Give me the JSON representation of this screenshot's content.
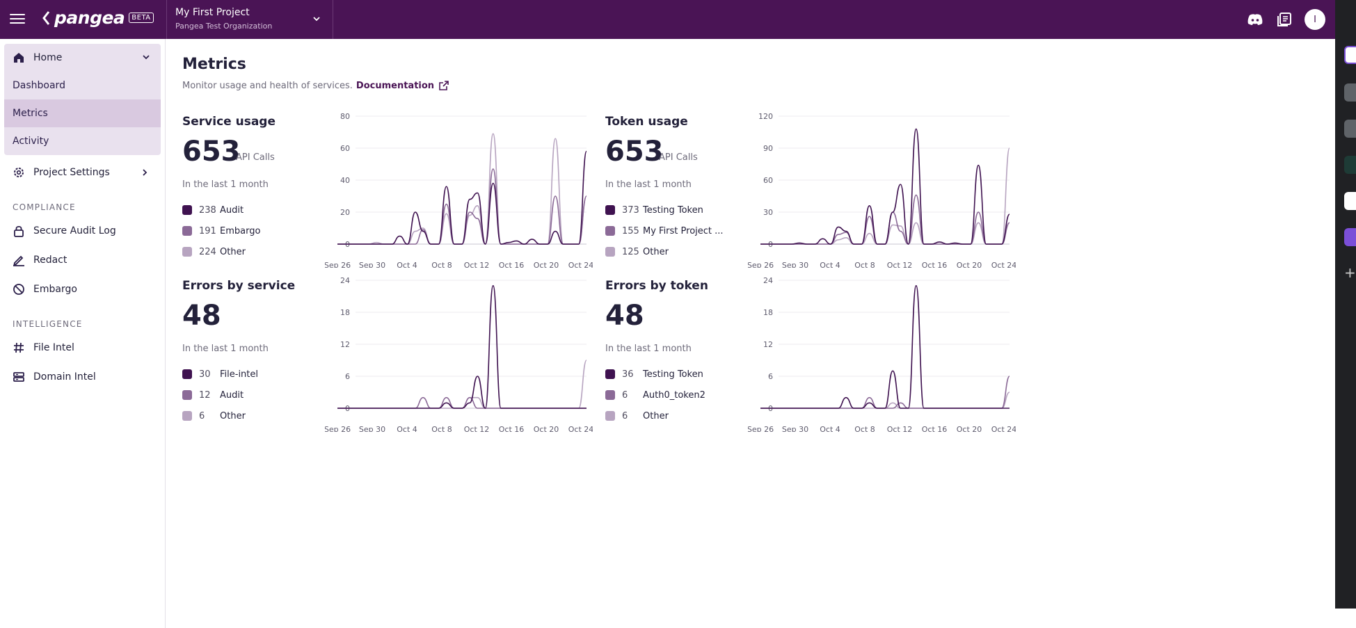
{
  "header": {
    "logo_text": "pangea",
    "beta_label": "BETA",
    "project_name": "My First Project",
    "org_name": "Pangea Test Organization",
    "avatar_initial": "I"
  },
  "sidebar": {
    "home_label": "Home",
    "home_items": [
      "Dashboard",
      "Metrics",
      "Activity"
    ],
    "active_item": "Metrics",
    "project_settings_label": "Project Settings",
    "compliance_label": "COMPLIANCE",
    "compliance_items": [
      {
        "label": "Secure Audit Log",
        "icon": "lock-icon"
      },
      {
        "label": "Redact",
        "icon": "pen-icon"
      },
      {
        "label": "Embargo",
        "icon": "prohibit-icon"
      }
    ],
    "intelligence_label": "INTELLIGENCE",
    "intelligence_items": [
      {
        "label": "File Intel",
        "icon": "hash-icon"
      },
      {
        "label": "Domain Intel",
        "icon": "server-icon"
      }
    ]
  },
  "main": {
    "title": "Metrics",
    "subtitle": "Monitor usage and health of services.",
    "doc_link": "Documentation"
  },
  "colors": {
    "dark": "#3f1250",
    "mid": "#8b6a97",
    "light": "#b7a4c0"
  },
  "chart_data": [
    {
      "type": "line",
      "title": "Service usage",
      "total": "653",
      "unit": "API Calls",
      "period": "In the last 1 month",
      "legend": [
        {
          "count": "238",
          "name": "Audit"
        },
        {
          "count": "191",
          "name": "Embargo"
        },
        {
          "count": "224",
          "name": "Other"
        }
      ],
      "x_ticks": [
        "Sep 26",
        "Sep 30",
        "Oct 4",
        "Oct 8",
        "Oct 12",
        "Oct 16",
        "Oct 20",
        "Oct 24"
      ],
      "ylim": [
        0,
        80
      ],
      "y_ticks": [
        0,
        20,
        40,
        60,
        80
      ],
      "series": [
        {
          "name": "Audit",
          "values": [
            0,
            0,
            0,
            0,
            0,
            0,
            0,
            0,
            5,
            0,
            20,
            8,
            0,
            0,
            36,
            0,
            0,
            28,
            32,
            0,
            38,
            0,
            1,
            2,
            0,
            3,
            0,
            0,
            8,
            0,
            0,
            0,
            58
          ]
        },
        {
          "name": "Embargo",
          "values": [
            0,
            0,
            0,
            0,
            0,
            0,
            0,
            0,
            0,
            0,
            0,
            9,
            0,
            0,
            25,
            0,
            0,
            20,
            16,
            0,
            47,
            0,
            0,
            0,
            0,
            0,
            0,
            0,
            30,
            0,
            0,
            0,
            30
          ]
        },
        {
          "name": "Other",
          "values": [
            0,
            0,
            0,
            0,
            0,
            1,
            0,
            0,
            0,
            0,
            8,
            10,
            0,
            0,
            19,
            0,
            0,
            18,
            24,
            0,
            69,
            0,
            0,
            0,
            0,
            0,
            0,
            0,
            66,
            0,
            0,
            0,
            30
          ]
        }
      ]
    },
    {
      "type": "line",
      "title": "Token usage",
      "total": "653",
      "unit": "API Calls",
      "period": "In the last 1 month",
      "legend": [
        {
          "count": "373",
          "name": "Testing Token"
        },
        {
          "count": "155",
          "name": "My First Project ..."
        },
        {
          "count": "125",
          "name": "Other"
        }
      ],
      "x_ticks": [
        "Sep 26",
        "Sep 30",
        "Oct 4",
        "Oct 8",
        "Oct 12",
        "Oct 16",
        "Oct 20",
        "Oct 24"
      ],
      "ylim": [
        0,
        120
      ],
      "y_ticks": [
        0,
        30,
        60,
        90,
        120
      ],
      "series": [
        {
          "name": "Testing Token",
          "values": [
            0,
            0,
            0,
            0,
            0,
            1,
            0,
            0,
            5,
            0,
            16,
            12,
            0,
            0,
            36,
            0,
            0,
            30,
            56,
            0,
            108,
            0,
            0,
            2,
            0,
            1,
            0,
            0,
            74,
            0,
            0,
            0,
            28
          ]
        },
        {
          "name": "My First Project ...",
          "values": [
            0,
            0,
            0,
            0,
            0,
            0,
            0,
            0,
            0,
            0,
            9,
            11,
            0,
            0,
            26,
            0,
            0,
            30,
            12,
            0,
            46,
            0,
            0,
            0,
            0,
            0,
            0,
            0,
            30,
            0,
            0,
            0,
            20
          ]
        },
        {
          "name": "Other",
          "values": [
            0,
            0,
            0,
            0,
            0,
            0,
            0,
            0,
            0,
            0,
            4,
            6,
            0,
            0,
            10,
            0,
            0,
            18,
            17,
            0,
            20,
            0,
            0,
            0,
            0,
            0,
            0,
            0,
            20,
            0,
            0,
            0,
            90
          ]
        }
      ]
    },
    {
      "type": "line",
      "title": "Errors by service",
      "total": "48",
      "unit": "",
      "period": "In the last 1 month",
      "legend": [
        {
          "count": "30",
          "name": "File-intel"
        },
        {
          "count": "12",
          "name": "Audit"
        },
        {
          "count": "6",
          "name": "Other"
        }
      ],
      "x_ticks": [
        "Sep 26",
        "Sep 30",
        "Oct 4",
        "Oct 8",
        "Oct 12",
        "Oct 16",
        "Oct 20",
        "Oct 24"
      ],
      "ylim": [
        0,
        24
      ],
      "y_ticks": [
        0,
        6,
        12,
        18,
        24
      ],
      "series": [
        {
          "name": "File-intel",
          "values": [
            0,
            0,
            0,
            0,
            0,
            0,
            0,
            0,
            0,
            0,
            0,
            0,
            0,
            0,
            1,
            0,
            0,
            1,
            6,
            0,
            23,
            0,
            0,
            0,
            0,
            0,
            0,
            0,
            0,
            0,
            0,
            0,
            0
          ]
        },
        {
          "name": "Audit",
          "values": [
            0,
            0,
            0,
            0,
            0,
            0,
            0,
            0,
            0,
            0,
            0,
            2,
            0,
            0,
            2,
            0,
            0,
            2,
            0,
            0,
            0,
            0,
            0,
            0,
            0,
            0,
            0,
            0,
            0,
            0,
            0,
            0,
            0
          ]
        },
        {
          "name": "Other",
          "values": [
            0,
            0,
            0,
            0,
            0,
            0,
            0,
            0,
            0,
            0,
            0,
            0,
            0,
            0,
            0,
            0,
            0,
            2,
            2,
            0,
            0,
            0,
            0,
            0,
            0,
            0,
            0,
            0,
            0,
            0,
            0,
            0,
            9
          ]
        }
      ]
    },
    {
      "type": "line",
      "title": "Errors by token",
      "total": "48",
      "unit": "",
      "period": "In the last 1 month",
      "legend": [
        {
          "count": "36",
          "name": "Testing Token"
        },
        {
          "count": "6",
          "name": "Auth0_token2"
        },
        {
          "count": "6",
          "name": "Other"
        }
      ],
      "x_ticks": [
        "Sep 26",
        "Sep 30",
        "Oct 4",
        "Oct 8",
        "Oct 12",
        "Oct 16",
        "Oct 20",
        "Oct 24"
      ],
      "ylim": [
        0,
        24
      ],
      "y_ticks": [
        0,
        6,
        12,
        18,
        24
      ],
      "series": [
        {
          "name": "Testing Token",
          "values": [
            0,
            0,
            0,
            0,
            0,
            0,
            0,
            0,
            0,
            0,
            0,
            2,
            0,
            0,
            1,
            0,
            0,
            7,
            0,
            0,
            23,
            0,
            0,
            0,
            0,
            0,
            0,
            0,
            0,
            0,
            0,
            0,
            0
          ]
        },
        {
          "name": "Auth0_token2",
          "values": [
            0,
            0,
            0,
            0,
            0,
            0,
            0,
            0,
            0,
            0,
            0,
            0,
            0,
            0,
            2,
            0,
            0,
            0,
            1,
            0,
            0,
            0,
            0,
            0,
            0,
            0,
            0,
            0,
            0,
            0,
            0,
            0,
            6
          ]
        },
        {
          "name": "Other",
          "values": [
            0,
            0,
            0,
            0,
            0,
            0,
            0,
            0,
            0,
            0,
            0,
            0,
            0,
            0,
            0,
            0,
            0,
            1,
            0,
            0,
            0,
            0,
            0,
            0,
            0,
            0,
            0,
            0,
            0,
            0,
            0,
            0,
            3
          ]
        }
      ]
    }
  ]
}
